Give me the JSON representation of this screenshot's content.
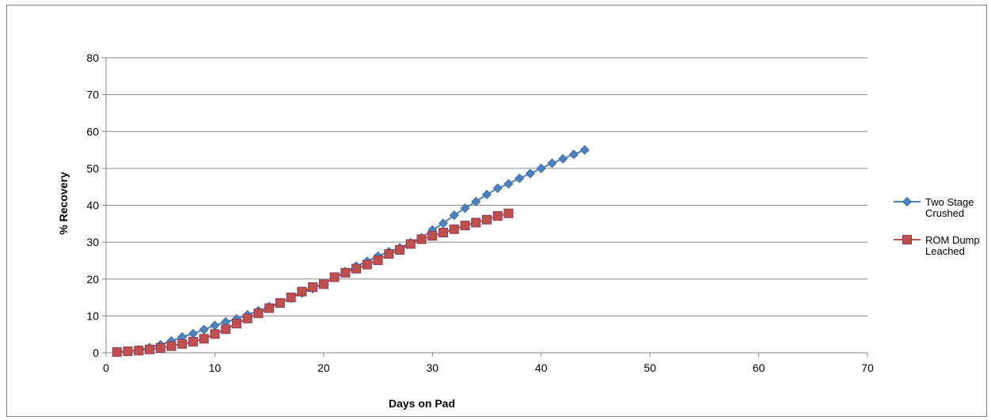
{
  "chart_data": {
    "type": "line",
    "title": "",
    "xlabel": "Days on Pad",
    "ylabel": "% Recovery",
    "xlim": [
      0,
      70
    ],
    "ylim": [
      0,
      80
    ],
    "xticks": [
      0,
      10,
      20,
      30,
      40,
      50,
      60,
      70
    ],
    "yticks": [
      0,
      10,
      20,
      30,
      40,
      50,
      60,
      70,
      80
    ],
    "grid": "horizontal",
    "legend_position": "right",
    "series": [
      {
        "name": "Two Stage Crushed",
        "legend_lines": [
          "Two Stage",
          "Crushed"
        ],
        "color": "#4f81bd",
        "marker": "diamond",
        "x": [
          1,
          2,
          3,
          4,
          5,
          6,
          7,
          8,
          9,
          10,
          11,
          12,
          13,
          14,
          15,
          16,
          17,
          18,
          19,
          20,
          21,
          22,
          23,
          24,
          25,
          26,
          27,
          28,
          29,
          30,
          31,
          32,
          33,
          34,
          35,
          36,
          37,
          38,
          39,
          40,
          41,
          42,
          43,
          44
        ],
        "y": [
          0.2,
          0.4,
          0.8,
          1.4,
          2.2,
          3.2,
          4.3,
          5.2,
          6.3,
          7.4,
          8.4,
          9.2,
          10.3,
          11.4,
          12.5,
          13.6,
          14.8,
          16.2,
          17.4,
          18.8,
          20.4,
          22.0,
          23.5,
          24.8,
          26.2,
          27.4,
          28.5,
          29.8,
          31.2,
          33.3,
          35.1,
          37.3,
          39.2,
          41.0,
          42.9,
          44.6,
          45.8,
          47.3,
          48.6,
          50.0,
          51.4,
          52.6,
          53.8,
          55.0
        ]
      },
      {
        "name": "ROM Dump Leached",
        "legend_lines": [
          "ROM Dump",
          "Leached"
        ],
        "color": "#c0504d",
        "edge_color": "#8e3a57",
        "marker": "square",
        "x": [
          1,
          2,
          3,
          4,
          5,
          6,
          7,
          8,
          9,
          10,
          11,
          12,
          13,
          14,
          15,
          16,
          17,
          18,
          19,
          20,
          21,
          22,
          23,
          24,
          25,
          26,
          27,
          28,
          29,
          30,
          31,
          32,
          33,
          34,
          35,
          36,
          37
        ],
        "y": [
          0.2,
          0.4,
          0.6,
          0.9,
          1.3,
          1.8,
          2.4,
          3.0,
          3.8,
          5.1,
          6.4,
          7.9,
          9.3,
          10.7,
          12.1,
          13.5,
          15.0,
          16.6,
          17.8,
          18.6,
          20.5,
          21.7,
          22.8,
          23.9,
          25.1,
          26.8,
          27.9,
          29.5,
          30.8,
          31.7,
          32.6,
          33.5,
          34.5,
          35.3,
          36.1,
          37.1,
          37.8
        ]
      }
    ]
  }
}
